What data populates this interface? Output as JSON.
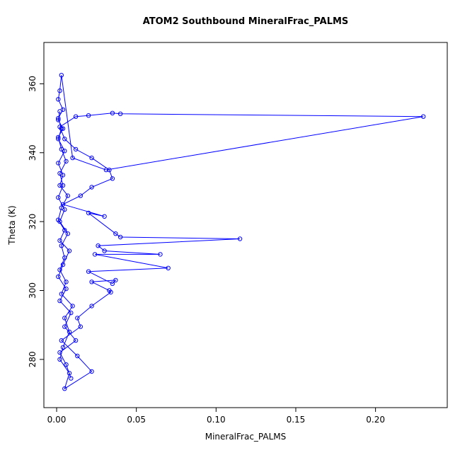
{
  "chart_data": {
    "type": "line",
    "title": "ATOM2 Southbound MineralFrac_PALMS",
    "xlabel": "MineralFrac_PALMS",
    "ylabel": "Theta (K)",
    "xlim": [
      -0.008,
      0.245
    ],
    "ylim": [
      266,
      372
    ],
    "x_ticks": [
      0.0,
      0.05,
      0.1,
      0.15,
      0.2
    ],
    "x_tick_labels": [
      "0.00",
      "0.05",
      "0.10",
      "0.15",
      "0.20"
    ],
    "y_ticks": [
      280,
      300,
      320,
      340,
      360
    ],
    "y_tick_labels": [
      "280",
      "300",
      "320",
      "340",
      "360"
    ],
    "grid": false,
    "legend": "none",
    "series_color": "#0000ff",
    "marker": "open-circle",
    "box": true,
    "points": [
      [
        0.002,
        352.0
      ],
      [
        0.001,
        349.5
      ],
      [
        0.004,
        347.0
      ],
      [
        0.001,
        344.5
      ],
      [
        0.003,
        341.0
      ],
      [
        0.006,
        337.5
      ],
      [
        0.002,
        334.0
      ],
      [
        0.004,
        330.5
      ],
      [
        0.001,
        327.0
      ],
      [
        0.005,
        323.5
      ],
      [
        0.002,
        320.0
      ],
      [
        0.007,
        316.5
      ],
      [
        0.003,
        313.0
      ],
      [
        0.005,
        309.5
      ],
      [
        0.002,
        306.0
      ],
      [
        0.006,
        302.5
      ],
      [
        0.003,
        299.0
      ],
      [
        0.01,
        295.5
      ],
      [
        0.005,
        292.0
      ],
      [
        0.008,
        288.0
      ],
      [
        0.004,
        283.5
      ],
      [
        0.002,
        280.0
      ],
      [
        0.008,
        276.0
      ],
      [
        0.005,
        271.5
      ],
      [
        0.022,
        276.5
      ],
      [
        0.013,
        281.0
      ],
      [
        0.003,
        285.5
      ],
      [
        0.015,
        289.5
      ],
      [
        0.013,
        292.0
      ],
      [
        0.022,
        295.5
      ],
      [
        0.034,
        299.5
      ],
      [
        0.033,
        300.0
      ],
      [
        0.022,
        302.5
      ],
      [
        0.037,
        303.0
      ],
      [
        0.035,
        302.0
      ],
      [
        0.02,
        305.5
      ],
      [
        0.07,
        306.5
      ],
      [
        0.024,
        310.5
      ],
      [
        0.065,
        310.5
      ],
      [
        0.03,
        311.5
      ],
      [
        0.026,
        313.0
      ],
      [
        0.115,
        315.0
      ],
      [
        0.04,
        315.5
      ],
      [
        0.037,
        316.5
      ],
      [
        0.02,
        322.5
      ],
      [
        0.03,
        321.5
      ],
      [
        0.004,
        325.0
      ],
      [
        0.015,
        327.5
      ],
      [
        0.022,
        330.0
      ],
      [
        0.035,
        332.5
      ],
      [
        0.033,
        335.0
      ],
      [
        0.022,
        338.5
      ],
      [
        0.012,
        341.0
      ],
      [
        0.005,
        344.0
      ],
      [
        0.002,
        347.5
      ],
      [
        0.012,
        350.5
      ],
      [
        0.02,
        350.8
      ],
      [
        0.035,
        351.5
      ],
      [
        0.04,
        351.3
      ],
      [
        0.23,
        350.5
      ],
      [
        0.031,
        335.0
      ],
      [
        0.01,
        338.5
      ],
      [
        0.003,
        362.5
      ],
      [
        0.002,
        358.0
      ],
      [
        0.001,
        355.5
      ],
      [
        0.004,
        352.5
      ],
      [
        0.001,
        350.0
      ],
      [
        0.003,
        347.0
      ],
      [
        0.001,
        344.0
      ],
      [
        0.005,
        340.5
      ],
      [
        0.001,
        337.0
      ],
      [
        0.004,
        333.5
      ],
      [
        0.002,
        330.5
      ],
      [
        0.007,
        327.5
      ],
      [
        0.003,
        324.0
      ],
      [
        0.001,
        320.5
      ],
      [
        0.005,
        317.5
      ],
      [
        0.002,
        314.5
      ],
      [
        0.008,
        311.5
      ],
      [
        0.004,
        307.5
      ],
      [
        0.001,
        304.0
      ],
      [
        0.006,
        300.5
      ],
      [
        0.002,
        297.0
      ],
      [
        0.009,
        293.5
      ],
      [
        0.005,
        289.5
      ],
      [
        0.012,
        285.5
      ],
      [
        0.002,
        282.0
      ],
      [
        0.006,
        278.5
      ],
      [
        0.009,
        274.5
      ]
    ]
  }
}
